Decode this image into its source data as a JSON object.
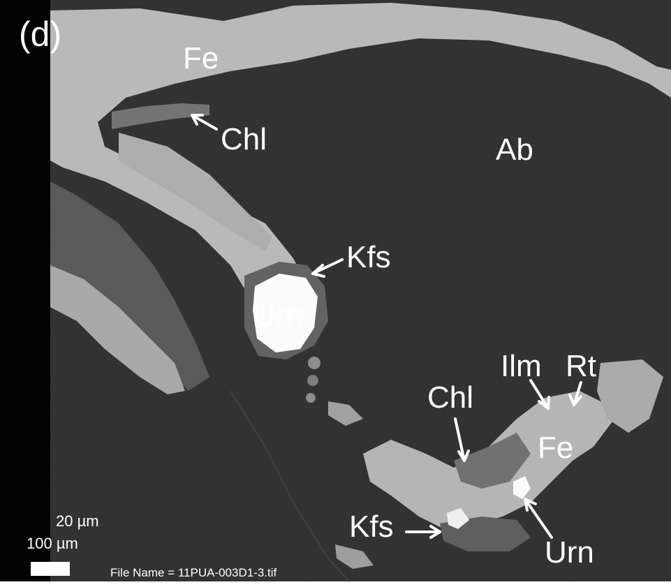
{
  "panel_label": "(d)",
  "minerals": {
    "fe_top": "Fe",
    "chl_top": "Chl",
    "ab": "Ab",
    "kfs_mid": "Kfs",
    "urn_mid": "Urn",
    "ilm": "Ilm",
    "rt": "Rt",
    "chl_bottom": "Chl",
    "fe_bottom": "Fe",
    "kfs_bottom": "Kfs",
    "urn_bottom": "Urn"
  },
  "scale": {
    "line1": "20 µm",
    "line2": "100 µm"
  },
  "file_name": "File Name = 11PUA-003D1-3.tif",
  "colors": {
    "matrix": "#2a2a2a",
    "fe_oxide": "#b7b7b7",
    "uraninite": "#ffffff",
    "kfs": "#6a6a6a",
    "chlorite": "#7a7a7a",
    "border": "#000000",
    "label": "#ffffff"
  }
}
